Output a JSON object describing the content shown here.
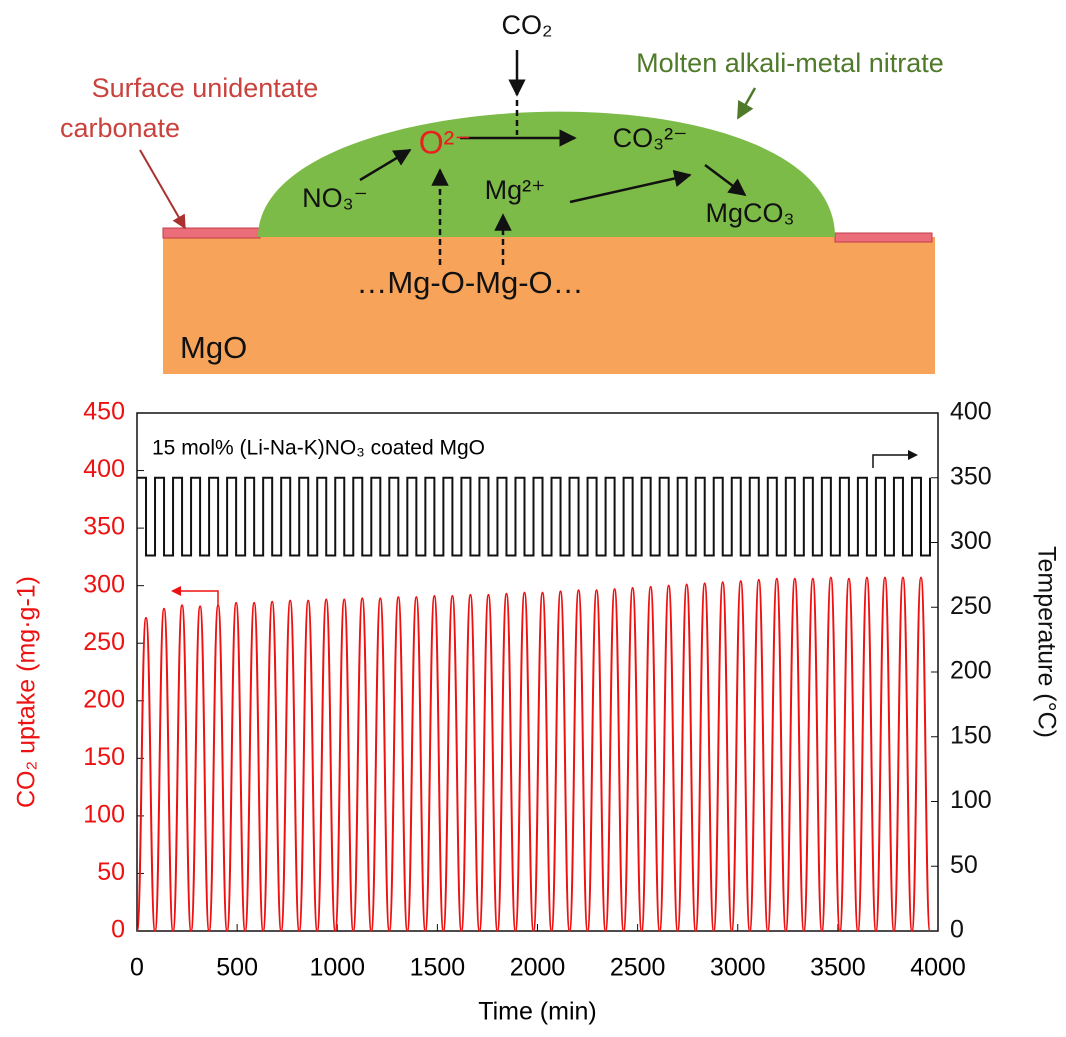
{
  "diagram": {
    "co2": "CO₂",
    "melt": "Molten alkali-metal nitrate",
    "surface": [
      "Surface unidentate",
      "carbonate"
    ],
    "o2": "O²⁻",
    "co3": "CO₃²⁻",
    "no3": "NO₃⁻",
    "mg2": "Mg²⁺",
    "mgco3": "MgCO₃",
    "lattice": "…Mg-O-Mg-O…",
    "mgo": "MgO"
  },
  "chart_data": {
    "type": "line",
    "annotation": "15 mol% (Li-Na-K)NO₃ coated MgO",
    "xlabel": "Time (min)",
    "ylabel": "CO₂ uptake (mg·g-1)",
    "y2label": "Temperature (°C)",
    "xlim": [
      0,
      4000
    ],
    "xticks": [
      0,
      500,
      1000,
      1500,
      2000,
      2500,
      3000,
      3500,
      4000
    ],
    "ylim": [
      0,
      450
    ],
    "yticks": [
      0,
      50,
      100,
      150,
      200,
      250,
      300,
      350,
      400,
      450
    ],
    "y2lim": [
      0,
      400
    ],
    "y2ticks": [
      0,
      50,
      100,
      150,
      200,
      250,
      300,
      350,
      400
    ],
    "x": [
      0,
      45,
      90,
      135,
      180,
      225,
      270,
      315,
      360,
      405,
      450,
      495,
      540,
      585,
      630,
      675,
      720,
      765,
      810,
      855,
      900,
      945,
      990,
      1035,
      1080,
      1125,
      1170,
      1215,
      1260,
      1305,
      1350,
      1395,
      1440,
      1485,
      1530,
      1575,
      1620,
      1665,
      1710,
      1755,
      1800,
      1845,
      1890,
      1935,
      1980,
      2025,
      2070,
      2115,
      2160,
      2205,
      2250,
      2295,
      2340,
      2385,
      2430,
      2475,
      2520,
      2565,
      2610,
      2655,
      2700,
      2745,
      2790,
      2835,
      2880,
      2925,
      2970,
      3015,
      3060,
      3105,
      3150,
      3195,
      3240,
      3285,
      3330,
      3375,
      3420,
      3465,
      3510,
      3555,
      3600,
      3645,
      3690,
      3735,
      3780,
      3825,
      3870,
      3915,
      3960
    ],
    "series": [
      {
        "color": "#ee1111",
        "axis": "y",
        "smooth": true,
        "values": [
          0,
          272,
          0,
          280,
          0,
          283,
          0,
          282,
          0,
          283,
          0,
          285,
          0,
          285,
          0,
          286,
          0,
          287,
          0,
          287,
          0,
          288,
          0,
          288,
          0,
          289,
          0,
          289,
          0,
          290,
          0,
          290,
          0,
          291,
          0,
          291,
          0,
          292,
          0,
          292,
          0,
          293,
          0,
          294,
          0,
          294,
          0,
          295,
          0,
          296,
          0,
          296,
          0,
          297,
          0,
          298,
          0,
          299,
          0,
          300,
          0,
          301,
          0,
          302,
          0,
          303,
          0,
          304,
          0,
          305,
          0,
          306,
          0,
          306,
          0,
          306,
          0,
          307,
          0,
          306,
          0,
          307,
          0,
          307,
          0,
          307,
          0,
          307,
          0
        ]
      },
      {
        "color": "#111111",
        "axis": "y2",
        "step": true,
        "values": [
          350,
          290,
          350,
          290,
          350,
          290,
          350,
          290,
          350,
          290,
          350,
          290,
          350,
          290,
          350,
          290,
          350,
          290,
          350,
          290,
          350,
          290,
          350,
          290,
          350,
          290,
          350,
          290,
          350,
          290,
          350,
          290,
          350,
          290,
          350,
          290,
          350,
          290,
          350,
          290,
          350,
          290,
          350,
          290,
          350,
          290,
          350,
          290,
          350,
          290,
          350,
          290,
          350,
          290,
          350,
          290,
          350,
          290,
          350,
          290,
          350,
          290,
          350,
          290,
          350,
          290,
          350,
          290,
          350,
          290,
          350,
          290,
          350,
          290,
          350,
          290,
          350,
          290,
          350,
          290,
          350,
          290,
          350,
          290,
          350,
          290,
          350,
          290,
          350
        ]
      }
    ]
  }
}
